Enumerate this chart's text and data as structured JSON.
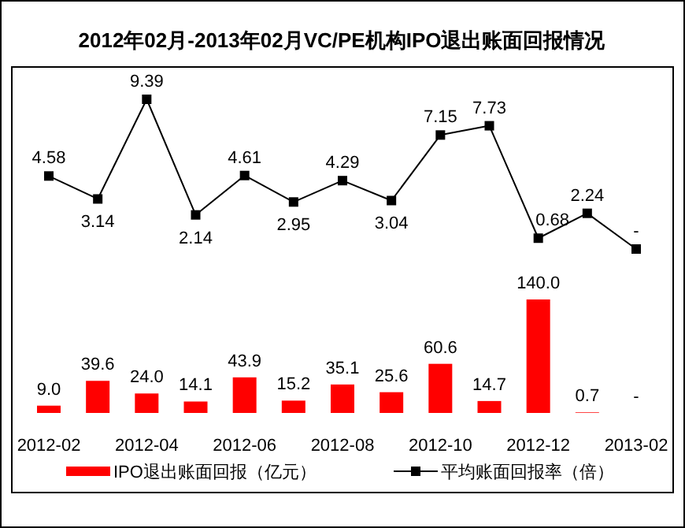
{
  "chart_data": [
    {
      "type": "line",
      "title": "2012年02月-2013年02月VC/PE机构IPO退出账面回报情况",
      "categories": [
        null,
        null,
        null,
        null,
        null,
        null,
        null,
        null,
        null,
        null,
        null,
        null,
        null
      ],
      "legend": "bottom",
      "marker": "square",
      "series": [
        {
          "name": "平均账面回报率（倍）",
          "color": "#000000",
          "values": [
            4.58,
            3.14,
            9.39,
            2.14,
            4.61,
            2.95,
            4.29,
            3.04,
            7.15,
            7.73,
            0.68,
            2.24,
            0
          ],
          "value_labels": [
            "4.58",
            "3.14",
            "9.39",
            "2.14",
            "4.61",
            "2.95",
            "4.29",
            "3.04",
            "7.15",
            "7.73",
            "0.68",
            "2.24",
            "-"
          ]
        }
      ]
    },
    {
      "type": "bar",
      "categories": [
        "2012-02",
        null,
        "2012-04",
        null,
        "2012-06",
        null,
        "2012-08",
        null,
        "2012-10",
        null,
        "2012-12",
        null,
        "2013-02"
      ],
      "legend": "bottom",
      "series": [
        {
          "name": "IPO退出账面回报（亿元）",
          "color": "#ff0000",
          "values": [
            9.0,
            39.6,
            24.0,
            14.1,
            43.9,
            15.2,
            35.1,
            25.6,
            60.6,
            14.7,
            140.0,
            0.7,
            null
          ],
          "value_labels": [
            "9.0",
            "39.6",
            "24.0",
            "14.1",
            "43.9",
            "15.2",
            "35.1",
            "25.6",
            "60.6",
            "14.7",
            "140.0",
            "0.7",
            "-"
          ]
        }
      ]
    }
  ]
}
